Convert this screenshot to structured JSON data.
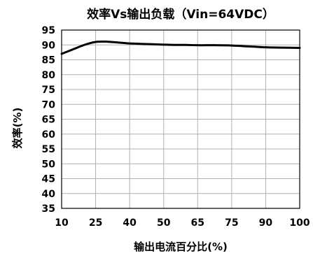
{
  "chart_data": {
    "type": "line",
    "title": "效率Vs输出负载（Vin=64VDC）",
    "xlabel": "输出电流百分比(%)",
    "ylabel": "效率(%)",
    "categories": [
      "10",
      "25",
      "40",
      "50",
      "65",
      "75",
      "90",
      "100"
    ],
    "x": [
      10,
      15,
      20,
      25,
      30,
      35,
      40,
      45,
      50,
      55,
      60,
      65,
      70,
      75,
      80,
      85,
      90,
      95,
      100
    ],
    "series": [
      {
        "values": [
          87.0,
          88.5,
          90.0,
          91.0,
          91.1,
          90.8,
          90.5,
          90.3,
          90.1,
          90.0,
          90.0,
          89.9,
          89.9,
          89.8,
          89.6,
          89.4,
          89.2,
          89.1,
          89.0
        ]
      }
    ],
    "ylim": [
      35,
      95
    ],
    "yticks": [
      35,
      40,
      45,
      50,
      55,
      60,
      65,
      70,
      75,
      80,
      85,
      90,
      95
    ],
    "grid": true,
    "line_color": "#000000",
    "grid_color": "#b0b0b0"
  }
}
